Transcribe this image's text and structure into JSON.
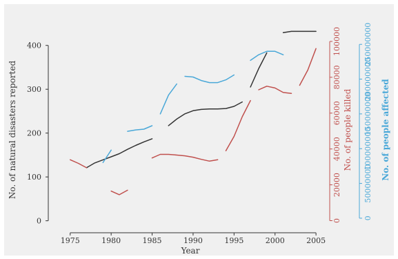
{
  "chart_data": {
    "type": "line",
    "title": "",
    "xlabel": "Year",
    "xlim": [
      1973,
      2006
    ],
    "x_ticks": [
      "1975",
      "1980",
      "1985",
      "1990",
      "1995",
      "2000",
      "2005"
    ],
    "grid": false,
    "legend": "none",
    "axes": [
      {
        "id": "disasters",
        "label": "No. of natural disasters reported",
        "side": "left",
        "color": "#333333",
        "ylim": [
          -10,
          450
        ],
        "ticks": [
          "0",
          "100",
          "200",
          "300",
          "400"
        ]
      },
      {
        "id": "killed",
        "label": "No. of people killed",
        "side": "right",
        "color": "#c0504d",
        "ylim": [
          -2500,
          110000
        ],
        "ticks": [
          "0",
          "20000",
          "40000",
          "60000",
          "80000",
          "100000"
        ]
      },
      {
        "id": "affected",
        "label": "No. of people affected",
        "side": "right-outer",
        "color": "#4aa8d8",
        "ylim": [
          -10000000,
          280000000
        ],
        "ticks": [
          "0",
          "50000000",
          "100000000",
          "150000000",
          "200000000",
          "250000000"
        ]
      }
    ],
    "series": [
      {
        "axis": "disasters",
        "color": "#333333",
        "segments": [
          [
            [
              1977,
              121
            ],
            [
              1978,
              132
            ],
            [
              1979,
              139
            ],
            [
              1980,
              146
            ],
            [
              1981,
              153
            ],
            [
              1982,
              163
            ],
            [
              1983,
              172
            ],
            [
              1984,
              180
            ],
            [
              1985,
              187
            ]
          ],
          [
            [
              1987,
              217
            ],
            [
              1988,
              232
            ],
            [
              1989,
              244
            ],
            [
              1990,
              251
            ],
            [
              1991,
              254
            ],
            [
              1992,
              255
            ],
            [
              1993,
              255
            ],
            [
              1994,
              256
            ],
            [
              1995,
              261
            ],
            [
              1996,
              271
            ]
          ],
          [
            [
              1997,
              305
            ],
            [
              1998,
              347
            ],
            [
              1999,
              383
            ]
          ],
          [
            [
              2001,
              429
            ],
            [
              2002,
              432
            ],
            [
              2003,
              432
            ],
            [
              2004,
              432
            ],
            [
              2005,
              432
            ]
          ]
        ]
      },
      {
        "axis": "killed",
        "color": "#c0504d",
        "segments": [
          [
            [
              1975,
              34000
            ],
            [
              1976,
              32000
            ],
            [
              1977,
              29500
            ]
          ],
          [
            [
              1980,
              16500
            ],
            [
              1981,
              14500
            ],
            [
              1982,
              17000
            ]
          ],
          [
            [
              1985,
              35000
            ],
            [
              1986,
              37000
            ],
            [
              1987,
              37000
            ],
            [
              1988,
              36600
            ],
            [
              1989,
              36200
            ],
            [
              1990,
              35400
            ],
            [
              1991,
              34200
            ],
            [
              1992,
              33200
            ],
            [
              1993,
              34000
            ]
          ],
          [
            [
              1994,
              39000
            ],
            [
              1995,
              47000
            ],
            [
              1996,
              58000
            ],
            [
              1997,
              67000
            ]
          ],
          [
            [
              1998,
              73000
            ],
            [
              1999,
              75000
            ],
            [
              2000,
              74000
            ],
            [
              2001,
              71500
            ],
            [
              2002,
              71000
            ]
          ],
          [
            [
              2003,
              75500
            ],
            [
              2004,
              84000
            ],
            [
              2005,
              96000
            ]
          ]
        ]
      },
      {
        "axis": "affected",
        "color": "#4aa8d8",
        "segments": [
          [
            [
              1979,
              80000000
            ],
            [
              1980,
              98000000
            ]
          ],
          [
            [
              1982,
              125000000
            ],
            [
              1983,
              127000000
            ],
            [
              1984,
              128000000
            ],
            [
              1985,
              133000000
            ]
          ],
          [
            [
              1986,
              150000000
            ],
            [
              1987,
              177000000
            ],
            [
              1988,
              193000000
            ]
          ],
          [
            [
              1989,
              204000000
            ],
            [
              1990,
              203000000
            ],
            [
              1991,
              198000000
            ],
            [
              1992,
              195000000
            ],
            [
              1993,
              195000000
            ],
            [
              1994,
              199000000
            ],
            [
              1995,
              206000000
            ]
          ],
          [
            [
              1997,
              227000000
            ],
            [
              1998,
              235000000
            ],
            [
              1999,
              240000000
            ],
            [
              2000,
              240000000
            ],
            [
              2001,
              235000000
            ]
          ]
        ]
      }
    ]
  }
}
